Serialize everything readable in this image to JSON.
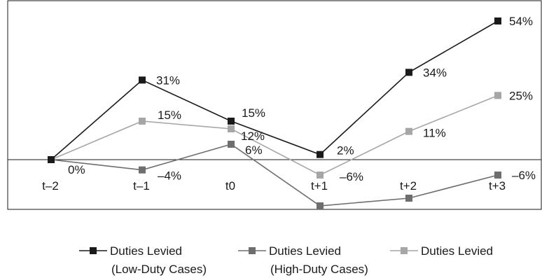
{
  "chart_data": {
    "type": "line",
    "categories": [
      "t–2",
      "t–1",
      "t0",
      "t+1",
      "t+2",
      "t+3"
    ],
    "ylim": [
      -20,
      60
    ],
    "series": [
      {
        "name": "Duties Levied",
        "name_line2": "(Low-Duty Cases)",
        "color": "#1a1a1a",
        "values": [
          0,
          31,
          15,
          2,
          34,
          54
        ],
        "labels": [
          "0%",
          "31%",
          "15%",
          "2%",
          "34%",
          "54%"
        ]
      },
      {
        "name": "Duties Levied",
        "name_line2": "(High-Duty Cases)",
        "color": "#6e6e6e",
        "values": [
          0,
          -4,
          6,
          -18,
          -15,
          -6
        ],
        "labels": [
          "",
          "–4%",
          "6%",
          "",
          "",
          "–6%"
        ]
      },
      {
        "name": "Duties Levied",
        "name_line2": "",
        "color": "#a6a6a6",
        "values": [
          0,
          15,
          12,
          -6,
          11,
          25
        ],
        "labels": [
          "",
          "15%",
          "12%",
          "–6%",
          "11%",
          "25%"
        ]
      }
    ]
  }
}
